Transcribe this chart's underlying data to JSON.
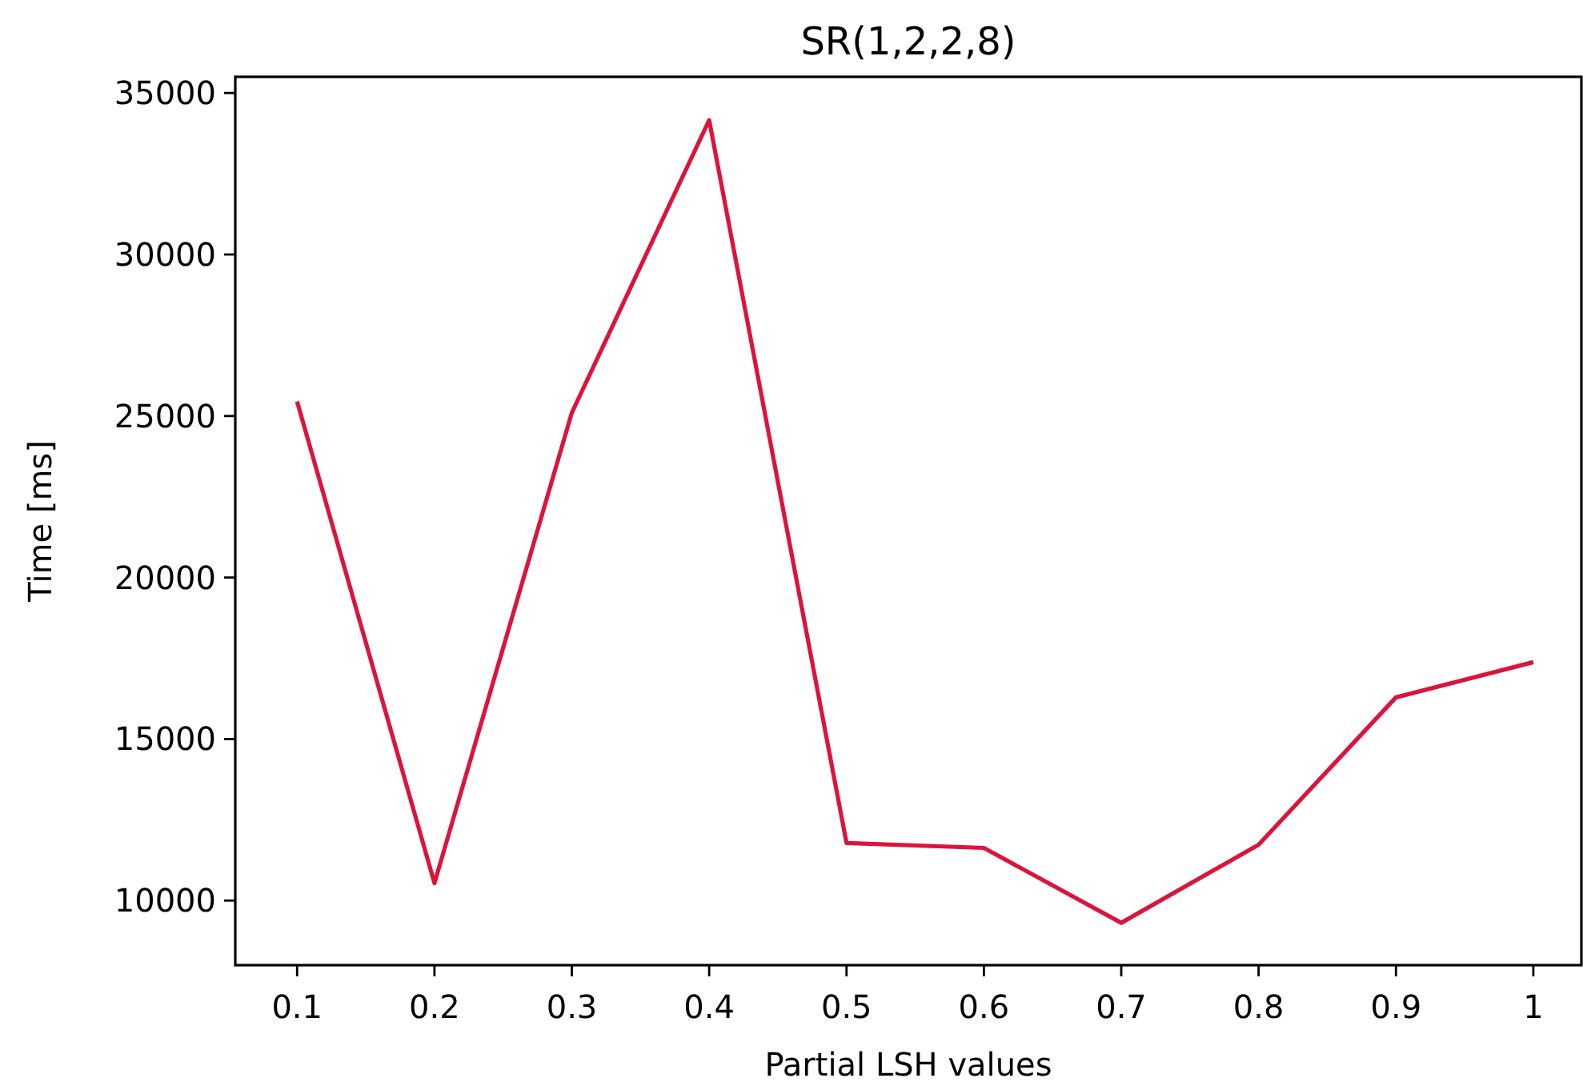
{
  "chart_data": {
    "type": "line",
    "title": "SR(1,2,2,8)",
    "xlabel": "Partial LSH values",
    "ylabel": "Time [ms]",
    "x": [
      0.1,
      0.2,
      0.3,
      0.4,
      0.5,
      0.6,
      0.7,
      0.8,
      0.9,
      1
    ],
    "series": [
      {
        "color": "#dc143c",
        "values": [
          25450,
          10540,
          25100,
          34160,
          11780,
          11630,
          9310,
          11730,
          16290,
          17380
        ]
      }
    ],
    "xlim": [
      0.055,
      1.035
    ],
    "ylim": [
      8000,
      35500
    ],
    "xticks": [
      0.1,
      0.2,
      0.3,
      0.4,
      0.5,
      0.6,
      0.7,
      0.8,
      0.9,
      1
    ],
    "yticks": [
      10000,
      15000,
      20000,
      25000,
      30000,
      35000
    ],
    "grid": false,
    "marker": "none",
    "line_style": "solid"
  }
}
